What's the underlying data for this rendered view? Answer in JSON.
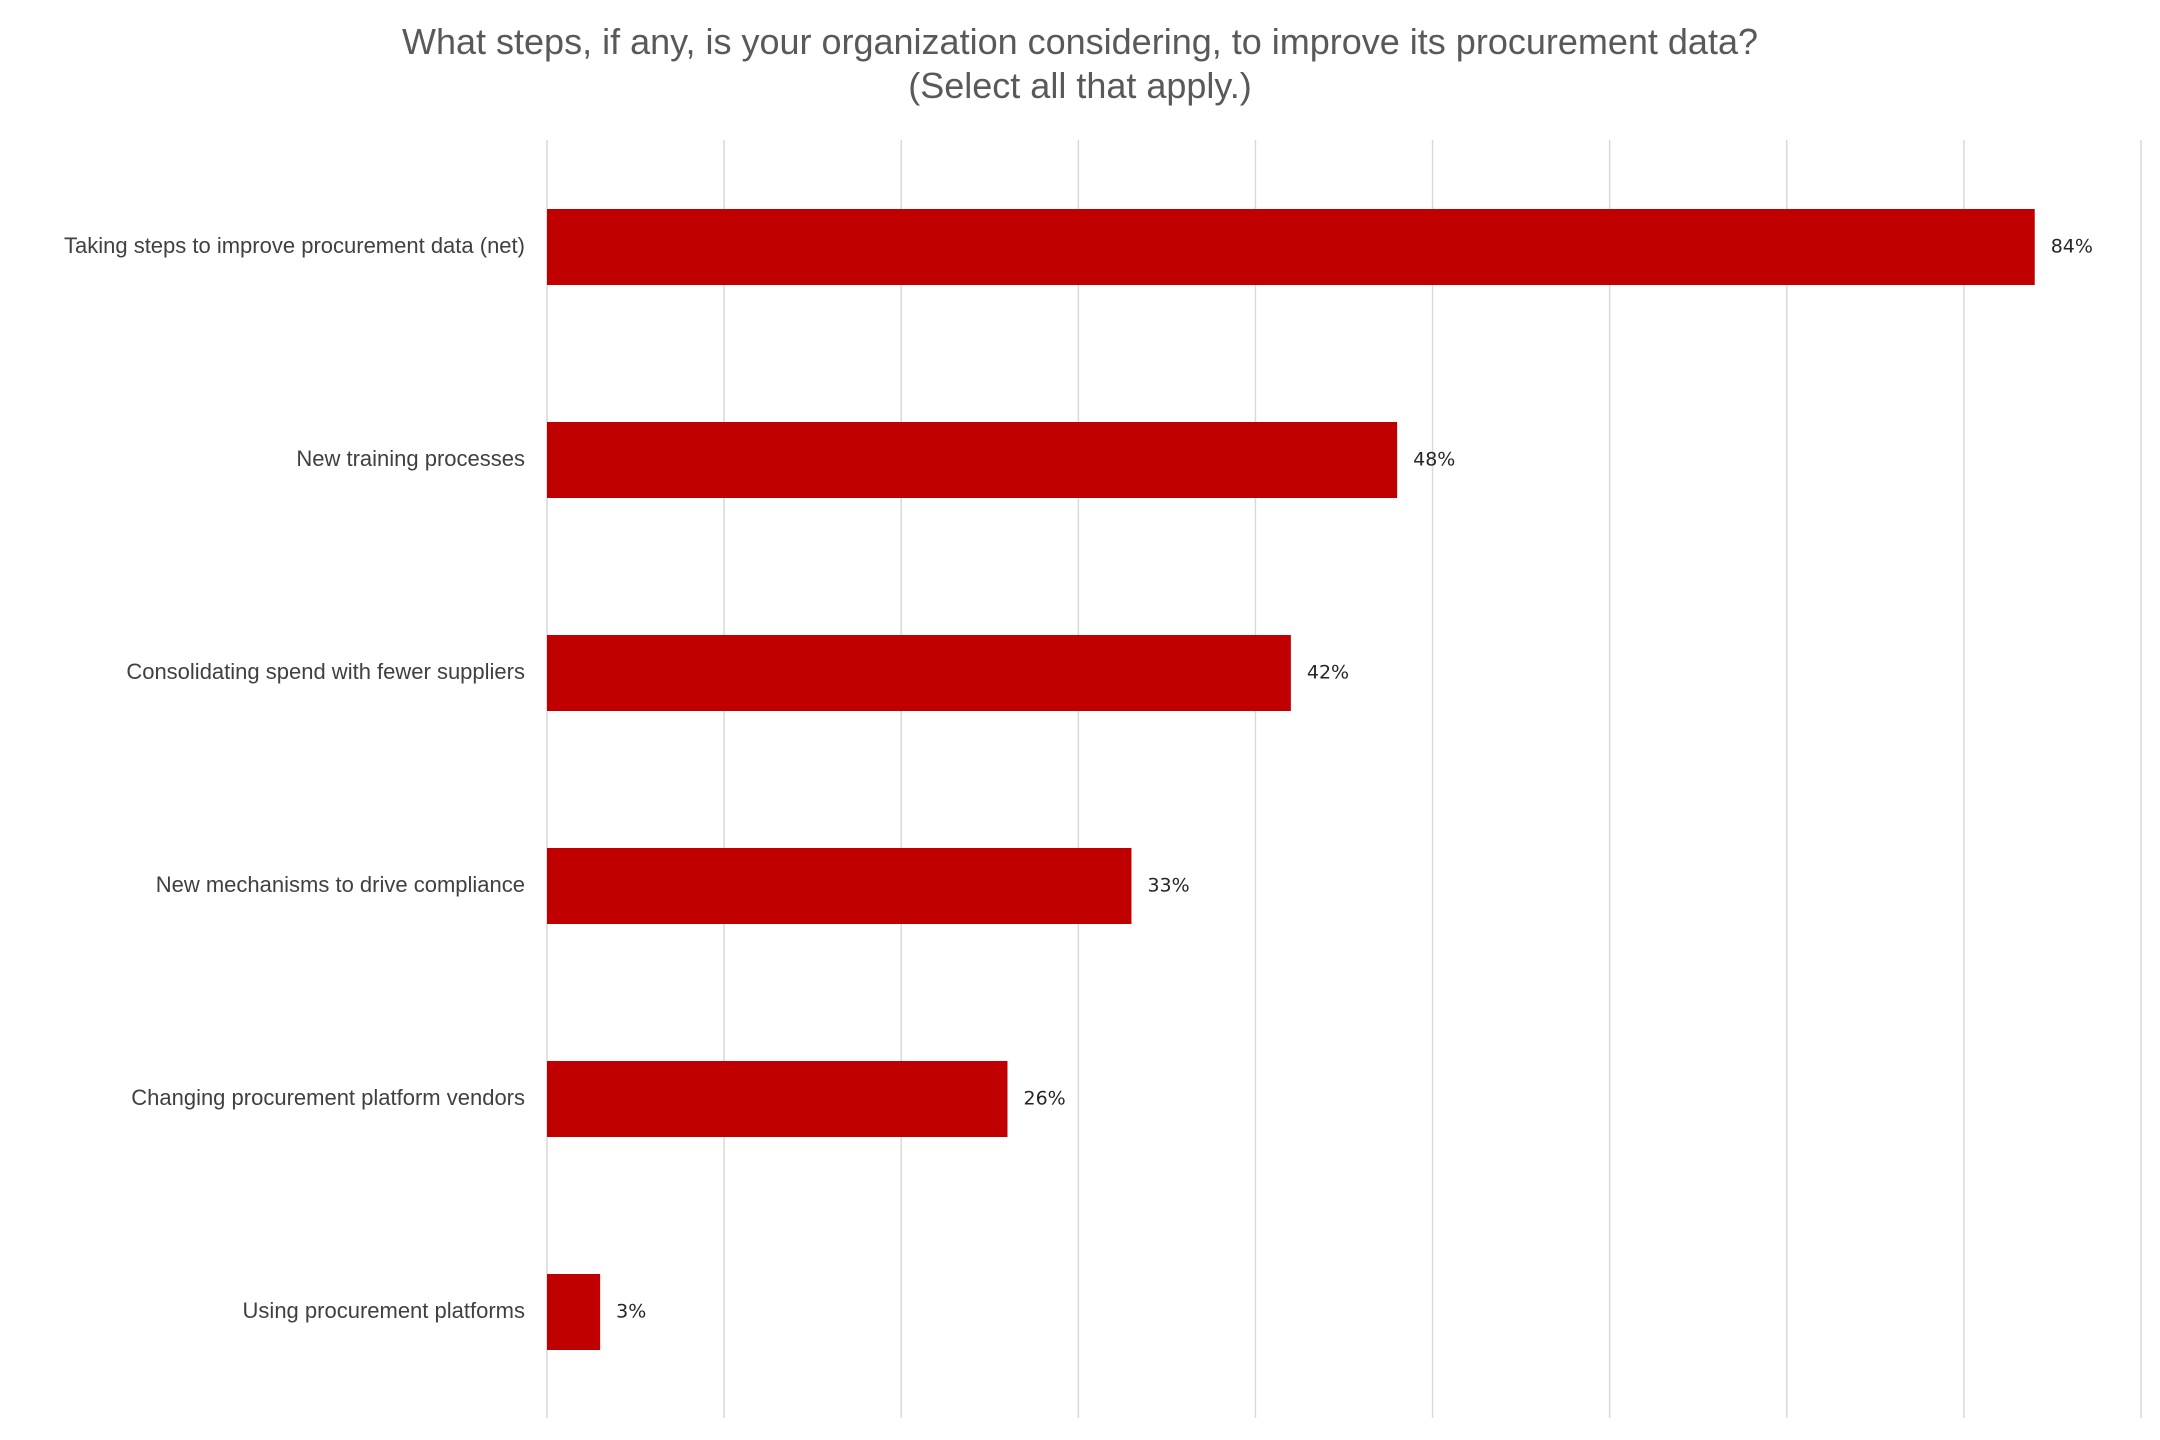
{
  "chart_data": {
    "type": "bar",
    "orientation": "horizontal",
    "title": "What steps, if any, is your organization considering, to improve its procurement data?",
    "subtitle": "(Select all that apply.)",
    "categories": [
      "Taking steps to improve procurement data (net)",
      "New training processes",
      "Consolidating spend with fewer suppliers",
      "New mechanisms to drive compliance",
      "Changing procurement platform vendors",
      "Using procurement platforms"
    ],
    "values": [
      84,
      48,
      42,
      33,
      26,
      3
    ],
    "value_labels": [
      "84%",
      "48%",
      "42%",
      "33%",
      "26%",
      "3%"
    ],
    "xlim": [
      0,
      90
    ],
    "x_gridlines_every": 10,
    "grid": true,
    "bar_color": "#c00000",
    "legend": "none"
  }
}
